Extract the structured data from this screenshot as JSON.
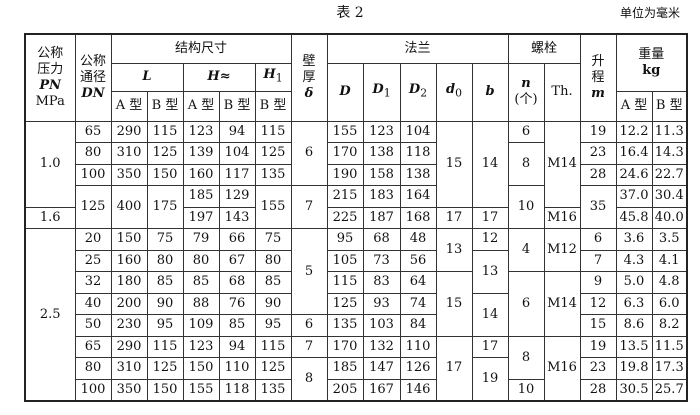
{
  "title": "表 2",
  "unit": "单位为毫米",
  "header": {
    "pn": [
      "公称",
      "压力",
      "PN",
      "MPa"
    ],
    "dn": [
      "公称",
      "通径",
      "DN"
    ],
    "struct": "结构尺寸",
    "L": "L",
    "H": "H≈",
    "H1": "H",
    "H1sub": "1",
    "wall": [
      "壁",
      "厚",
      "δ"
    ],
    "flange": "法兰",
    "D": "D",
    "D1": "D",
    "D1sub": "1",
    "D2": "D",
    "D2sub": "2",
    "d0": "d",
    "d0sub": "0",
    "b": "b",
    "bolt": "螺栓",
    "n": [
      "n",
      "(个)"
    ],
    "th": "Th.",
    "lift": [
      "升",
      "程",
      "m"
    ],
    "weight": [
      "重量",
      "kg"
    ],
    "typeA": "A 型",
    "typeB": "B 型"
  },
  "rows": [
    [
      {
        "v": "1.0",
        "rs": 4
      },
      {
        "v": "65"
      },
      {
        "v": "290"
      },
      {
        "v": "115"
      },
      {
        "v": "123"
      },
      {
        "v": "94"
      },
      {
        "v": "115"
      },
      {
        "v": "6",
        "rs": 3
      },
      {
        "v": "155"
      },
      {
        "v": "123"
      },
      {
        "v": "104"
      },
      {
        "v": "15",
        "rs": 4
      },
      {
        "v": "14",
        "rs": 4
      },
      {
        "v": "6"
      },
      {
        "v": "M14",
        "rs": 4
      },
      {
        "v": "19"
      },
      {
        "v": "12.2"
      },
      {
        "v": "11.3"
      }
    ],
    [
      {
        "v": "80"
      },
      {
        "v": "310"
      },
      {
        "v": "125"
      },
      {
        "v": "139"
      },
      {
        "v": "104"
      },
      {
        "v": "125"
      },
      {
        "v": "170"
      },
      {
        "v": "138"
      },
      {
        "v": "118"
      },
      {
        "v": "8",
        "rs": 2
      },
      {
        "v": "23"
      },
      {
        "v": "16.4"
      },
      {
        "v": "14.3"
      }
    ],
    [
      {
        "v": "100"
      },
      {
        "v": "350"
      },
      {
        "v": "150"
      },
      {
        "v": "160"
      },
      {
        "v": "117"
      },
      {
        "v": "135"
      },
      {
        "v": "190"
      },
      {
        "v": "158"
      },
      {
        "v": "138"
      },
      {
        "v": "28"
      },
      {
        "v": "24.6"
      },
      {
        "v": "22.7"
      }
    ],
    [
      {
        "v": "125",
        "rs": 2
      },
      {
        "v": "400",
        "rs": 2
      },
      {
        "v": "175",
        "rs": 2
      },
      {
        "v": "185"
      },
      {
        "v": "129"
      },
      {
        "v": "155",
        "rs": 2
      },
      {
        "v": "7",
        "rs": 2
      },
      {
        "v": "215"
      },
      {
        "v": "183"
      },
      {
        "v": "164"
      },
      {
        "v": "10",
        "rs": 2
      },
      {
        "v": "35",
        "rs": 2
      },
      {
        "v": "37.0"
      },
      {
        "v": "30.4"
      }
    ],
    [
      {
        "v": "1.6"
      },
      {
        "v": "197"
      },
      {
        "v": "143"
      },
      {
        "v": "225"
      },
      {
        "v": "187"
      },
      {
        "v": "168"
      },
      {
        "v": "17"
      },
      {
        "v": "17"
      },
      {
        "v": "M16"
      },
      {
        "v": "45.8"
      },
      {
        "v": "40.0"
      }
    ],
    [
      {
        "v": "2.5",
        "rs": 8
      },
      {
        "v": "20"
      },
      {
        "v": "150"
      },
      {
        "v": "75"
      },
      {
        "v": "79"
      },
      {
        "v": "66"
      },
      {
        "v": "75"
      },
      {
        "v": "5",
        "rs": 4
      },
      {
        "v": "95"
      },
      {
        "v": "68"
      },
      {
        "v": "48"
      },
      {
        "v": "13",
        "rs": 2
      },
      {
        "v": "12"
      },
      {
        "v": "4",
        "rs": 2
      },
      {
        "v": "M12",
        "rs": 2
      },
      {
        "v": "6"
      },
      {
        "v": "3.6"
      },
      {
        "v": "3.5"
      }
    ],
    [
      {
        "v": "25"
      },
      {
        "v": "160"
      },
      {
        "v": "80"
      },
      {
        "v": "80"
      },
      {
        "v": "67"
      },
      {
        "v": "80"
      },
      {
        "v": "105"
      },
      {
        "v": "73"
      },
      {
        "v": "56"
      },
      {
        "v": "13",
        "rs": 2
      },
      {
        "v": "7"
      },
      {
        "v": "4.3"
      },
      {
        "v": "4.1"
      }
    ],
    [
      {
        "v": "32"
      },
      {
        "v": "180"
      },
      {
        "v": "85"
      },
      {
        "v": "85"
      },
      {
        "v": "68"
      },
      {
        "v": "85"
      },
      {
        "v": "115"
      },
      {
        "v": "83"
      },
      {
        "v": "64"
      },
      {
        "v": "15",
        "rs": 3
      },
      {
        "v": "6",
        "rs": 3
      },
      {
        "v": "M14",
        "rs": 3
      },
      {
        "v": "9"
      },
      {
        "v": "5.0"
      },
      {
        "v": "4.8"
      }
    ],
    [
      {
        "v": "40"
      },
      {
        "v": "200"
      },
      {
        "v": "90"
      },
      {
        "v": "88"
      },
      {
        "v": "76"
      },
      {
        "v": "90"
      },
      {
        "v": "125"
      },
      {
        "v": "93"
      },
      {
        "v": "74"
      },
      {
        "v": "14",
        "rs": 2
      },
      {
        "v": "12"
      },
      {
        "v": "6.3"
      },
      {
        "v": "6.0"
      }
    ],
    [
      {
        "v": "50"
      },
      {
        "v": "230"
      },
      {
        "v": "95"
      },
      {
        "v": "109"
      },
      {
        "v": "85"
      },
      {
        "v": "95"
      },
      {
        "v": "6"
      },
      {
        "v": "135"
      },
      {
        "v": "103"
      },
      {
        "v": "84"
      },
      {
        "v": "15"
      },
      {
        "v": "8.6"
      },
      {
        "v": "8.2"
      }
    ],
    [
      {
        "v": "65"
      },
      {
        "v": "290"
      },
      {
        "v": "115"
      },
      {
        "v": "123"
      },
      {
        "v": "94"
      },
      {
        "v": "115"
      },
      {
        "v": "7"
      },
      {
        "v": "170"
      },
      {
        "v": "132"
      },
      {
        "v": "110"
      },
      {
        "v": "17",
        "rs": 3
      },
      {
        "v": "17"
      },
      {
        "v": "8",
        "rs": 2
      },
      {
        "v": "M16",
        "rs": 3
      },
      {
        "v": "19"
      },
      {
        "v": "13.5"
      },
      {
        "v": "11.5"
      }
    ],
    [
      {
        "v": "80"
      },
      {
        "v": "310"
      },
      {
        "v": "125"
      },
      {
        "v": "150"
      },
      {
        "v": "110"
      },
      {
        "v": "125"
      },
      {
        "v": "8",
        "rs": 2
      },
      {
        "v": "185"
      },
      {
        "v": "147"
      },
      {
        "v": "126"
      },
      {
        "v": "19",
        "rs": 2
      },
      {
        "v": "23"
      },
      {
        "v": "19.8"
      },
      {
        "v": "17.3"
      }
    ],
    [
      {
        "v": "100"
      },
      {
        "v": "350"
      },
      {
        "v": "150"
      },
      {
        "v": "155"
      },
      {
        "v": "118"
      },
      {
        "v": "135"
      },
      {
        "v": "205"
      },
      {
        "v": "167"
      },
      {
        "v": "146"
      },
      {
        "v": "10"
      },
      {
        "v": "28"
      },
      {
        "v": "30.5"
      },
      {
        "v": "25.7"
      }
    ]
  ]
}
